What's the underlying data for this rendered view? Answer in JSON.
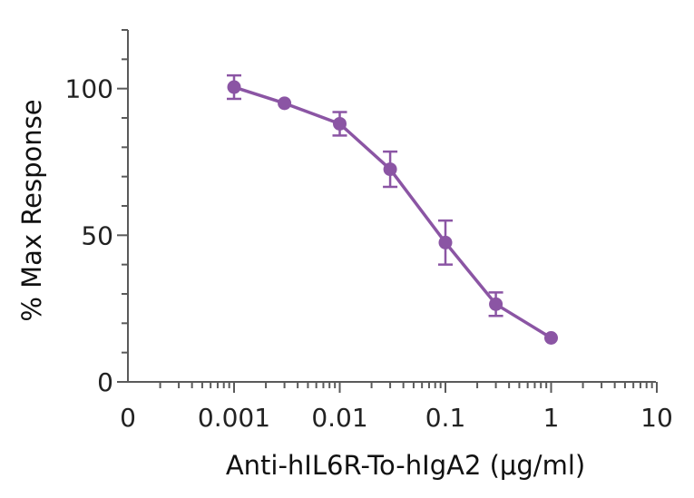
{
  "chart_data": {
    "type": "line",
    "xlabel": "Anti-hIL6R-To-hIgA2 (μg/ml)",
    "ylabel": "% Max  Response",
    "x_scale": "log",
    "x_ticks": [
      {
        "value": 0,
        "label": "0"
      },
      {
        "value": 0.001,
        "label": "0.001"
      },
      {
        "value": 0.01,
        "label": "0.01"
      },
      {
        "value": 0.1,
        "label": "0.1"
      },
      {
        "value": 1,
        "label": "1"
      },
      {
        "value": 10,
        "label": "10"
      }
    ],
    "y_ticks": [
      {
        "value": 0,
        "label": "0"
      },
      {
        "value": 50,
        "label": "50"
      },
      {
        "value": 100,
        "label": "100"
      }
    ],
    "ylim": [
      0,
      120
    ],
    "grid": false,
    "series": [
      {
        "color": "#8b55a4",
        "points": [
          {
            "x": 0.001,
            "y": 100.5,
            "err": 4
          },
          {
            "x": 0.003,
            "y": 95,
            "err": 0
          },
          {
            "x": 0.01,
            "y": 88,
            "err": 4
          },
          {
            "x": 0.03,
            "y": 72.5,
            "err": 6
          },
          {
            "x": 0.1,
            "y": 47.5,
            "err": 7.5
          },
          {
            "x": 0.3,
            "y": 26.5,
            "err": 4
          },
          {
            "x": 1,
            "y": 15,
            "err": 0
          }
        ]
      }
    ]
  }
}
